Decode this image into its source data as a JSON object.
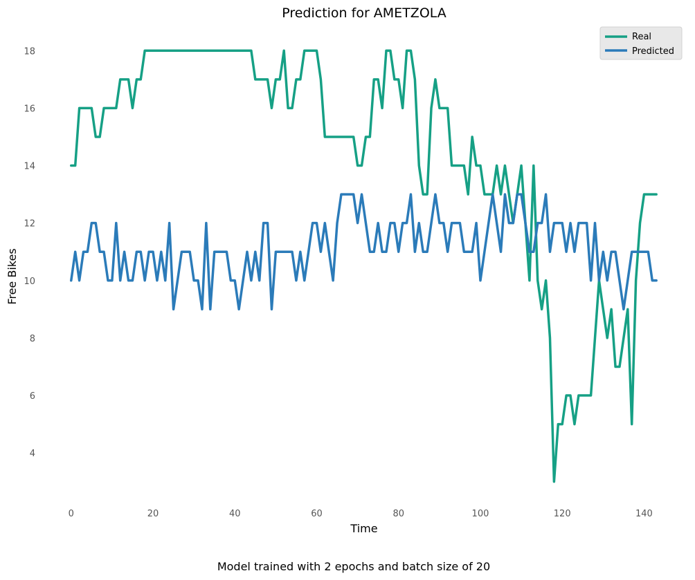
{
  "chart_data": {
    "type": "line",
    "title": "Prediction for AMETZOLA",
    "xlabel": "Time",
    "ylabel": "Free Bikes",
    "caption": "Model trained with 2 epochs and batch size of 20",
    "xlim": [
      -2.5,
      145
    ],
    "ylim": [
      2.2,
      18.8
    ],
    "xticks": [
      0,
      20,
      40,
      60,
      80,
      100,
      120,
      140
    ],
    "yticks": [
      4,
      6,
      8,
      10,
      12,
      14,
      16,
      18
    ],
    "grid": false,
    "legend_position": "top-right",
    "series": [
      {
        "name": "Real",
        "color": "#16a085",
        "values": [
          14,
          14,
          16,
          16,
          16,
          16,
          15,
          15,
          16,
          16,
          16,
          16,
          17,
          17,
          17,
          16,
          17,
          17,
          18,
          18,
          18,
          18,
          18,
          18,
          18,
          18,
          18,
          18,
          18,
          18,
          18,
          18,
          18,
          18,
          18,
          18,
          18,
          18,
          18,
          18,
          18,
          18,
          18,
          18,
          18,
          17,
          17,
          17,
          17,
          16,
          17,
          17,
          18,
          16,
          16,
          17,
          17,
          18,
          18,
          18,
          18,
          17,
          15,
          15,
          15,
          15,
          15,
          15,
          15,
          15,
          14,
          14,
          15,
          15,
          17,
          17,
          16,
          18,
          18,
          17,
          17,
          16,
          18,
          18,
          17,
          14,
          13,
          13,
          16,
          17,
          16,
          16,
          16,
          14,
          14,
          14,
          14,
          13,
          15,
          14,
          14,
          13,
          13,
          13,
          14,
          13,
          14,
          13,
          12,
          13,
          14,
          12,
          10,
          14,
          10,
          9,
          10,
          8,
          3,
          5,
          5,
          6,
          6,
          5,
          6,
          6,
          6,
          6,
          8,
          10,
          9,
          8,
          9,
          7,
          7,
          8,
          9,
          5,
          10,
          12,
          13,
          13,
          13,
          13
        ]
      },
      {
        "name": "Predicted",
        "color": "#2b7bb9",
        "values": [
          10,
          11,
          10,
          11,
          11,
          12,
          12,
          11,
          11,
          10,
          10,
          12,
          10,
          11,
          10,
          10,
          11,
          11,
          10,
          11,
          11,
          10,
          11,
          10,
          12,
          9,
          10,
          11,
          11,
          11,
          10,
          10,
          9,
          12,
          9,
          11,
          11,
          11,
          11,
          10,
          10,
          9,
          10,
          11,
          10,
          11,
          10,
          12,
          12,
          9,
          11,
          11,
          11,
          11,
          11,
          10,
          11,
          10,
          11,
          12,
          12,
          11,
          12,
          11,
          10,
          12,
          13,
          13,
          13,
          13,
          12,
          13,
          12,
          11,
          11,
          12,
          11,
          11,
          12,
          12,
          11,
          12,
          12,
          13,
          11,
          12,
          11,
          11,
          12,
          13,
          12,
          12,
          11,
          12,
          12,
          12,
          11,
          11,
          11,
          12,
          10,
          11,
          12,
          13,
          12,
          11,
          13,
          12,
          12,
          13,
          13,
          12,
          11,
          11,
          12,
          12,
          13,
          11,
          12,
          12,
          12,
          11,
          12,
          11,
          12,
          12,
          12,
          10,
          12,
          10,
          11,
          10,
          11,
          11,
          10,
          9,
          10,
          11,
          11,
          11,
          11,
          11,
          10,
          10
        ]
      }
    ]
  }
}
